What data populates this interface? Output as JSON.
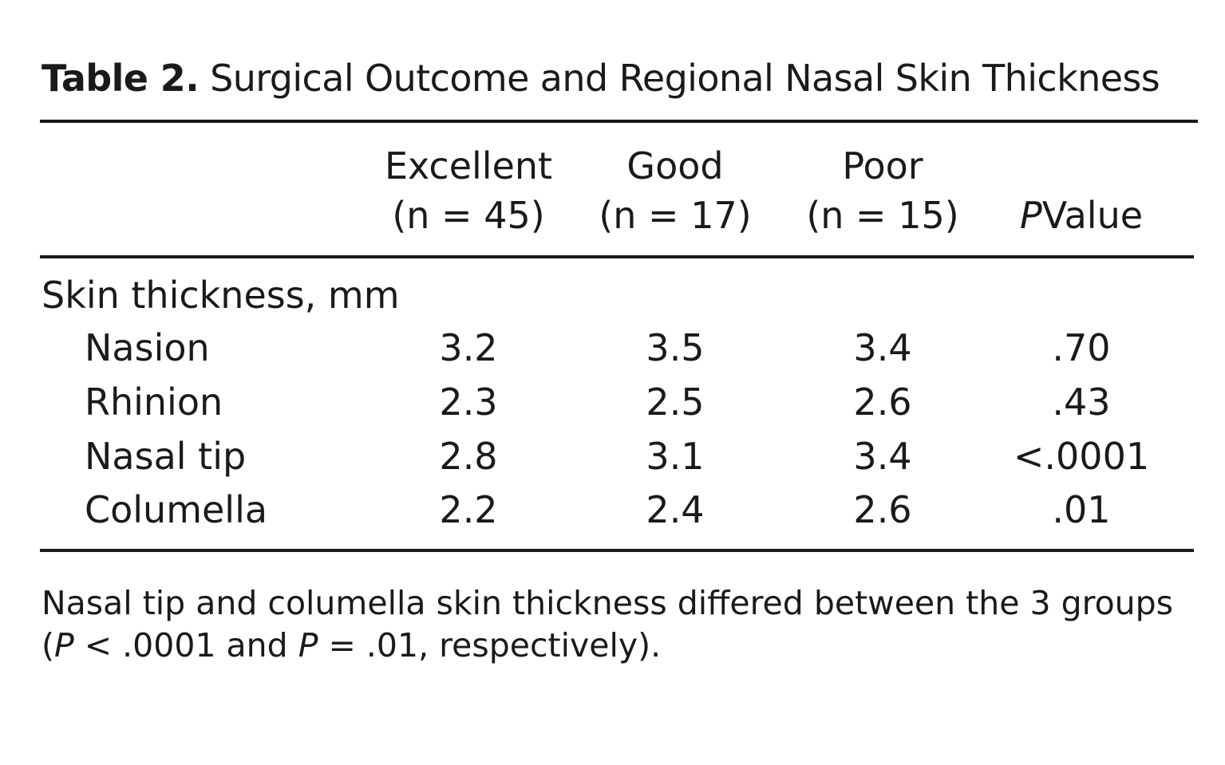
{
  "table": {
    "label": "Table 2.",
    "title": "Surgical Outcome and Regional Nasal Skin Thickness",
    "columns": [
      {
        "name": "Excellent",
        "n": "(n = 45)"
      },
      {
        "name": "Good",
        "n": "(n = 17)"
      },
      {
        "name": "Poor",
        "n": "(n = 15)"
      }
    ],
    "pvalue_header": {
      "p": "P",
      "rest": "Value"
    },
    "section_label": "Skin thickness, mm",
    "rows": [
      {
        "label": "Nasion",
        "values": [
          "3.2",
          "3.5",
          "3.4"
        ],
        "p": ".70"
      },
      {
        "label": "Rhinion",
        "values": [
          "2.3",
          "2.5",
          "2.6"
        ],
        "p": ".43"
      },
      {
        "label": "Nasal tip",
        "values": [
          "2.8",
          "3.1",
          "3.4"
        ],
        "p": "<.0001"
      },
      {
        "label": "Columella",
        "values": [
          "2.2",
          "2.4",
          "2.6"
        ],
        "p": ".01"
      }
    ],
    "footnote": {
      "line1": "Nasal tip and columella skin thickness differed between the 3 groups",
      "open_paren": "(",
      "p1": "P",
      "part1": " < .0001 and ",
      "p2": "P",
      "part2": " = .01, respectively)."
    }
  }
}
